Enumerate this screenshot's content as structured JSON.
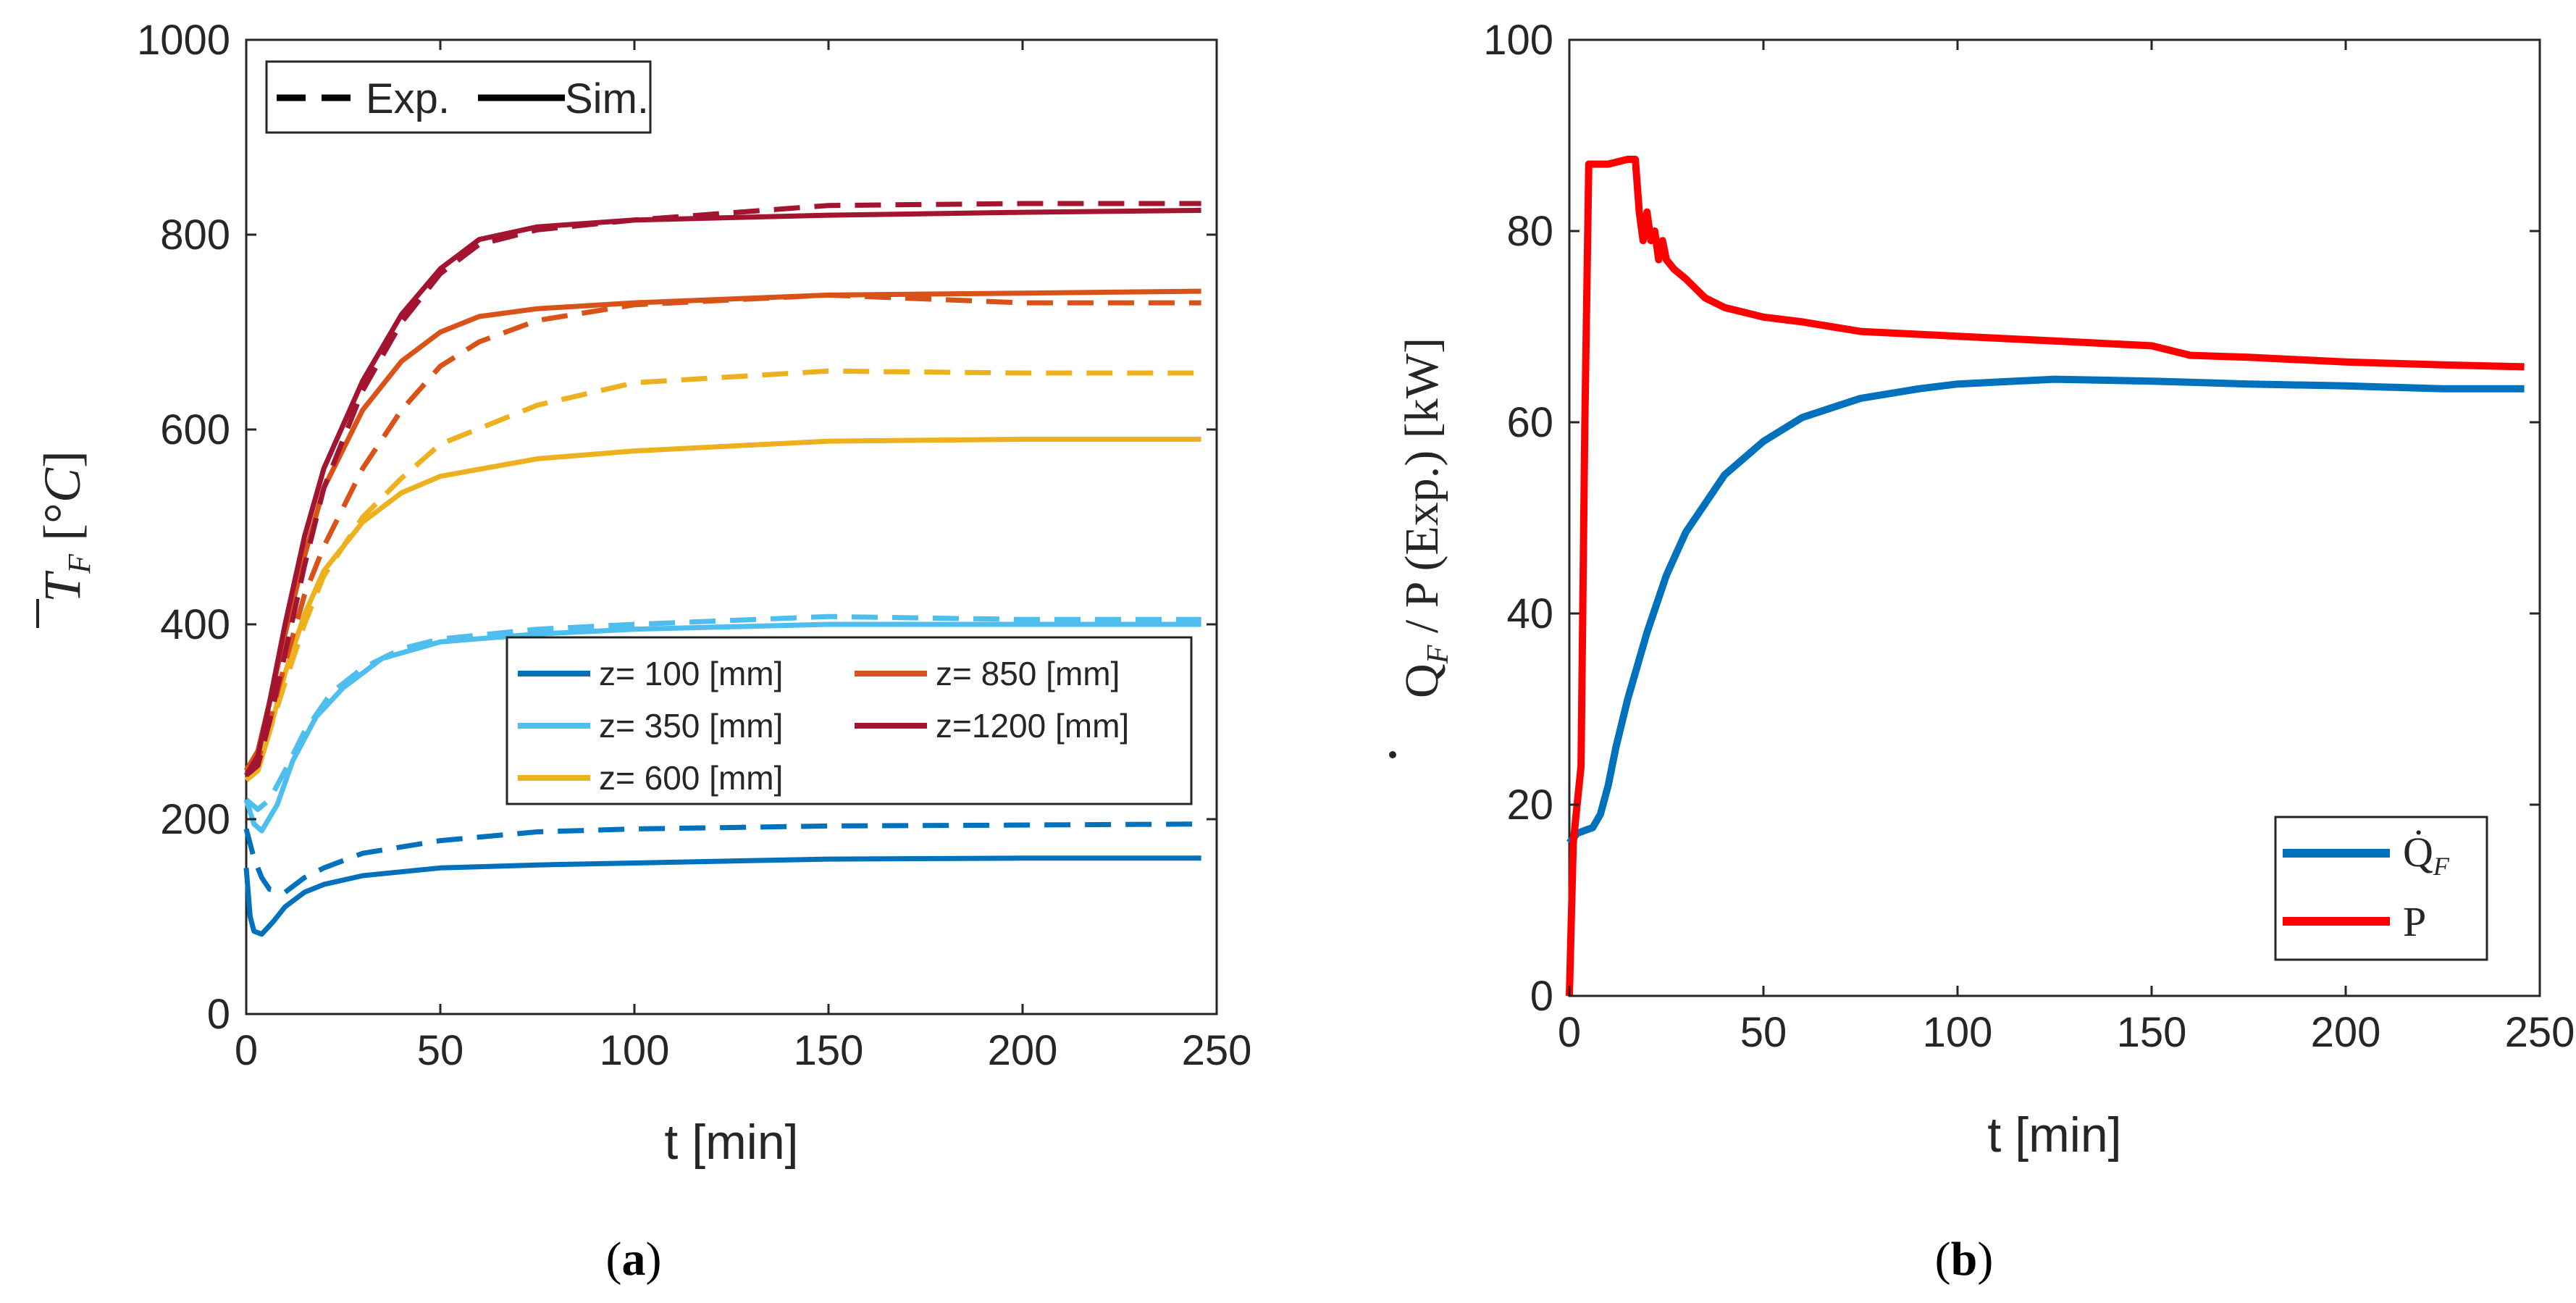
{
  "chart_data": [
    {
      "panel": "a",
      "caption_label": "a",
      "type": "line",
      "xlabel": "t [min]",
      "ylabel": "T̄_F [°C]",
      "xlim": [
        0,
        250
      ],
      "ylim": [
        0,
        1000
      ],
      "xticks": [
        "0",
        "50",
        "100",
        "150",
        "200",
        "250"
      ],
      "yticks": [
        "0",
        "200",
        "400",
        "600",
        "800",
        "1000"
      ],
      "style_legend": {
        "exp_label": "Exp.",
        "sim_label": "Sim.",
        "placement": "top-left"
      },
      "legend_placement": "center-right",
      "series": [
        {
          "name": "z= 100 [mm]",
          "color": "#0072BD",
          "sim": [
            [
              0,
              150
            ],
            [
              1,
              100
            ],
            [
              2,
              85
            ],
            [
              4,
              82
            ],
            [
              7,
              95
            ],
            [
              10,
              110
            ],
            [
              15,
              125
            ],
            [
              20,
              133
            ],
            [
              30,
              142
            ],
            [
              50,
              150
            ],
            [
              75,
              153
            ],
            [
              100,
              155
            ],
            [
              150,
              159
            ],
            [
              200,
              160
            ],
            [
              246,
              160
            ]
          ],
          "exp": [
            [
              0,
              190
            ],
            [
              2,
              160
            ],
            [
              4,
              140
            ],
            [
              6,
              128
            ],
            [
              10,
              125
            ],
            [
              15,
              140
            ],
            [
              20,
              150
            ],
            [
              30,
              165
            ],
            [
              50,
              178
            ],
            [
              75,
              187
            ],
            [
              100,
              190
            ],
            [
              150,
              193
            ],
            [
              200,
              194
            ],
            [
              246,
              195
            ]
          ]
        },
        {
          "name": "z= 350 [mm]",
          "color": "#4DBEEE",
          "sim": [
            [
              0,
              220
            ],
            [
              2,
              195
            ],
            [
              4,
              188
            ],
            [
              8,
              215
            ],
            [
              12,
              260
            ],
            [
              18,
              305
            ],
            [
              25,
              335
            ],
            [
              35,
              365
            ],
            [
              50,
              382
            ],
            [
              75,
              390
            ],
            [
              100,
              395
            ],
            [
              150,
              400
            ],
            [
              200,
              400
            ],
            [
              246,
              400
            ]
          ],
          "exp": [
            [
              0,
              220
            ],
            [
              3,
              210
            ],
            [
              6,
              220
            ],
            [
              10,
              250
            ],
            [
              15,
              290
            ],
            [
              22,
              330
            ],
            [
              30,
              355
            ],
            [
              40,
              375
            ],
            [
              50,
              385
            ],
            [
              75,
              395
            ],
            [
              100,
              400
            ],
            [
              150,
              408
            ],
            [
              200,
              405
            ],
            [
              246,
              405
            ]
          ]
        },
        {
          "name": "z= 600 [mm]",
          "color": "#EDB120",
          "sim": [
            [
              0,
              240
            ],
            [
              3,
              250
            ],
            [
              6,
              290
            ],
            [
              10,
              350
            ],
            [
              15,
              410
            ],
            [
              20,
              455
            ],
            [
              30,
              505
            ],
            [
              40,
              535
            ],
            [
              50,
              552
            ],
            [
              75,
              570
            ],
            [
              100,
              578
            ],
            [
              150,
              588
            ],
            [
              200,
              590
            ],
            [
              246,
              590
            ]
          ],
          "exp": [
            [
              0,
              240
            ],
            [
              3,
              250
            ],
            [
              6,
              290
            ],
            [
              10,
              340
            ],
            [
              15,
              400
            ],
            [
              20,
              450
            ],
            [
              30,
              510
            ],
            [
              40,
              550
            ],
            [
              50,
              585
            ],
            [
              75,
              625
            ],
            [
              100,
              648
            ],
            [
              150,
              660
            ],
            [
              200,
              658
            ],
            [
              246,
              658
            ]
          ]
        },
        {
          "name": "z= 850 [mm]",
          "color": "#D95319",
          "sim": [
            [
              0,
              250
            ],
            [
              3,
              270
            ],
            [
              6,
              320
            ],
            [
              10,
              390
            ],
            [
              15,
              470
            ],
            [
              20,
              540
            ],
            [
              30,
              620
            ],
            [
              40,
              670
            ],
            [
              50,
              700
            ],
            [
              60,
              716
            ],
            [
              75,
              724
            ],
            [
              100,
              730
            ],
            [
              150,
              738
            ],
            [
              200,
              740
            ],
            [
              246,
              742
            ]
          ],
          "exp": [
            [
              0,
              250
            ],
            [
              3,
              260
            ],
            [
              6,
              300
            ],
            [
              10,
              360
            ],
            [
              15,
              430
            ],
            [
              20,
              480
            ],
            [
              30,
              560
            ],
            [
              40,
              620
            ],
            [
              50,
              665
            ],
            [
              60,
              690
            ],
            [
              75,
              712
            ],
            [
              100,
              728
            ],
            [
              150,
              738
            ],
            [
              200,
              730
            ],
            [
              246,
              730
            ]
          ]
        },
        {
          "name": "z=1200 [mm]",
          "color": "#A2142F",
          "sim": [
            [
              0,
              245
            ],
            [
              3,
              265
            ],
            [
              6,
              320
            ],
            [
              10,
              400
            ],
            [
              15,
              490
            ],
            [
              20,
              560
            ],
            [
              30,
              650
            ],
            [
              40,
              718
            ],
            [
              50,
              765
            ],
            [
              60,
              795
            ],
            [
              75,
              808
            ],
            [
              100,
              815
            ],
            [
              150,
              820
            ],
            [
              200,
              823
            ],
            [
              246,
              825
            ]
          ],
          "exp": [
            [
              0,
              245
            ],
            [
              3,
              255
            ],
            [
              6,
              300
            ],
            [
              10,
              370
            ],
            [
              15,
              460
            ],
            [
              20,
              540
            ],
            [
              30,
              640
            ],
            [
              40,
              710
            ],
            [
              50,
              760
            ],
            [
              60,
              790
            ],
            [
              75,
              805
            ],
            [
              100,
              815
            ],
            [
              150,
              830
            ],
            [
              200,
              832
            ],
            [
              246,
              832
            ]
          ]
        }
      ]
    },
    {
      "panel": "b",
      "caption_label": "b",
      "type": "line",
      "xlabel": "t [min]",
      "ylabel": "Q̇_F / P (Exp.) [kW]",
      "xlim": [
        0,
        250
      ],
      "ylim": [
        0,
        100
      ],
      "xticks": [
        "0",
        "50",
        "100",
        "150",
        "200",
        "250"
      ],
      "yticks": [
        "0",
        "20",
        "40",
        "60",
        "80",
        "100"
      ],
      "legend_placement": "bottom-right",
      "series": [
        {
          "name": "Q̇_F",
          "legend_main": "Q̇",
          "legend_sub": "F",
          "color": "#0072BD",
          "values": [
            [
              0,
              16
            ],
            [
              2,
              17
            ],
            [
              4,
              17.3
            ],
            [
              6,
              17.6
            ],
            [
              8,
              19
            ],
            [
              10,
              22
            ],
            [
              12,
              26
            ],
            [
              15,
              31
            ],
            [
              20,
              38
            ],
            [
              25,
              44
            ],
            [
              30,
              48.5
            ],
            [
              40,
              54.5
            ],
            [
              50,
              58
            ],
            [
              60,
              60.5
            ],
            [
              75,
              62.5
            ],
            [
              90,
              63.5
            ],
            [
              100,
              64
            ],
            [
              125,
              64.5
            ],
            [
              150,
              64.3
            ],
            [
              175,
              64
            ],
            [
              200,
              63.8
            ],
            [
              225,
              63.5
            ],
            [
              246,
              63.5
            ]
          ]
        },
        {
          "name": "P",
          "legend_main": "P",
          "legend_sub": "",
          "color": "#FF0000",
          "values": [
            [
              0,
              0
            ],
            [
              1,
              16
            ],
            [
              2,
              20
            ],
            [
              3,
              24
            ],
            [
              4,
              60
            ],
            [
              5,
              87
            ],
            [
              10,
              87
            ],
            [
              15,
              87.5
            ],
            [
              17,
              87.5
            ],
            [
              18,
              82
            ],
            [
              19,
              79
            ],
            [
              20,
              82
            ],
            [
              21,
              79
            ],
            [
              22,
              80
            ],
            [
              23,
              77
            ],
            [
              24,
              79
            ],
            [
              25,
              77
            ],
            [
              27,
              76
            ],
            [
              30,
              75
            ],
            [
              35,
              73
            ],
            [
              40,
              72
            ],
            [
              50,
              71
            ],
            [
              60,
              70.5
            ],
            [
              75,
              69.5
            ],
            [
              100,
              69
            ],
            [
              125,
              68.5
            ],
            [
              150,
              68
            ],
            [
              160,
              67
            ],
            [
              175,
              66.8
            ],
            [
              200,
              66.3
            ],
            [
              225,
              66
            ],
            [
              246,
              65.8
            ]
          ]
        }
      ]
    }
  ]
}
